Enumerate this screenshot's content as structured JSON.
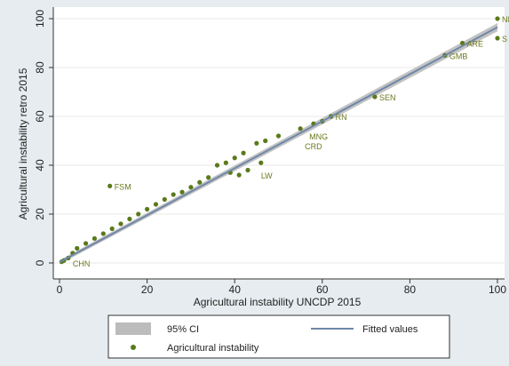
{
  "chart_data": {
    "type": "scatter",
    "xlabel": "Agricultural instability UNCDP 2015",
    "ylabel": "Agricultural instability retro 2015",
    "xlim": [
      0,
      100
    ],
    "ylim": [
      0,
      100
    ],
    "x_ticks": [
      "0",
      "20",
      "40",
      "60",
      "80",
      "100"
    ],
    "y_ticks": [
      "0",
      "20",
      "40",
      "60",
      "80",
      "100"
    ],
    "grid": "horizontal",
    "legend_placement": "bottom",
    "colors": {
      "points": "#5a7a1a",
      "fit_line": "#6f87a8",
      "ci_band": "#bcbcbc",
      "labels": "#6b7a1e",
      "background": "#e6ecef",
      "plot_bg": "#ffffff"
    },
    "fitted": {
      "x": [
        0,
        100
      ],
      "y": [
        0.3,
        96.5
      ]
    },
    "ci": {
      "x": [
        0,
        100
      ],
      "lower": [
        -0.5,
        94.8
      ],
      "upper": [
        1.1,
        98.2
      ]
    },
    "series": [
      {
        "name": "Agricultural instability",
        "points": [
          [
            100,
            100
          ],
          [
            100,
            92
          ],
          [
            92,
            90
          ],
          [
            88,
            85
          ],
          [
            72,
            68
          ],
          [
            62,
            60
          ],
          [
            60,
            58
          ],
          [
            58,
            57
          ],
          [
            55,
            55
          ],
          [
            50,
            52
          ],
          [
            47,
            50
          ],
          [
            45,
            49
          ],
          [
            42,
            45
          ],
          [
            40,
            43
          ],
          [
            38,
            41
          ],
          [
            36,
            40
          ],
          [
            46,
            41
          ],
          [
            43,
            38
          ],
          [
            41,
            36
          ],
          [
            39,
            37
          ],
          [
            11.5,
            31.5
          ],
          [
            34,
            35
          ],
          [
            32,
            33
          ],
          [
            30,
            31
          ],
          [
            28,
            29
          ],
          [
            26,
            28
          ],
          [
            24,
            26
          ],
          [
            22,
            24
          ],
          [
            20,
            22
          ],
          [
            18,
            20
          ],
          [
            16,
            18
          ],
          [
            14,
            16
          ],
          [
            12,
            14
          ],
          [
            10,
            12
          ],
          [
            8,
            10
          ],
          [
            6,
            8
          ],
          [
            4,
            6
          ],
          [
            3,
            4
          ],
          [
            2,
            2
          ],
          [
            1,
            1
          ],
          [
            0.5,
            0.5
          ]
        ],
        "labels": [
          {
            "text": "NI",
            "x": 100,
            "y": 100
          },
          {
            "text": "S",
            "x": 100,
            "y": 92
          },
          {
            "text": "ARE",
            "x": 92,
            "y": 90
          },
          {
            "text": "GMB",
            "x": 88,
            "y": 85
          },
          {
            "text": "SEN",
            "x": 72,
            "y": 68
          },
          {
            "text": "RN",
            "x": 62,
            "y": 60
          },
          {
            "text": "MNG",
            "x": 56,
            "y": 52
          },
          {
            "text": "CRD",
            "x": 55,
            "y": 48
          },
          {
            "text": "LW",
            "x": 45,
            "y": 36
          },
          {
            "text": "FSM",
            "x": 11.5,
            "y": 31.5
          },
          {
            "text": "CHN",
            "x": 2,
            "y": 0
          }
        ]
      }
    ],
    "legend": [
      {
        "label": "95% CI",
        "kind": "band"
      },
      {
        "label": "Fitted values",
        "kind": "line"
      },
      {
        "label": "Agricultural instability",
        "kind": "point"
      }
    ]
  }
}
